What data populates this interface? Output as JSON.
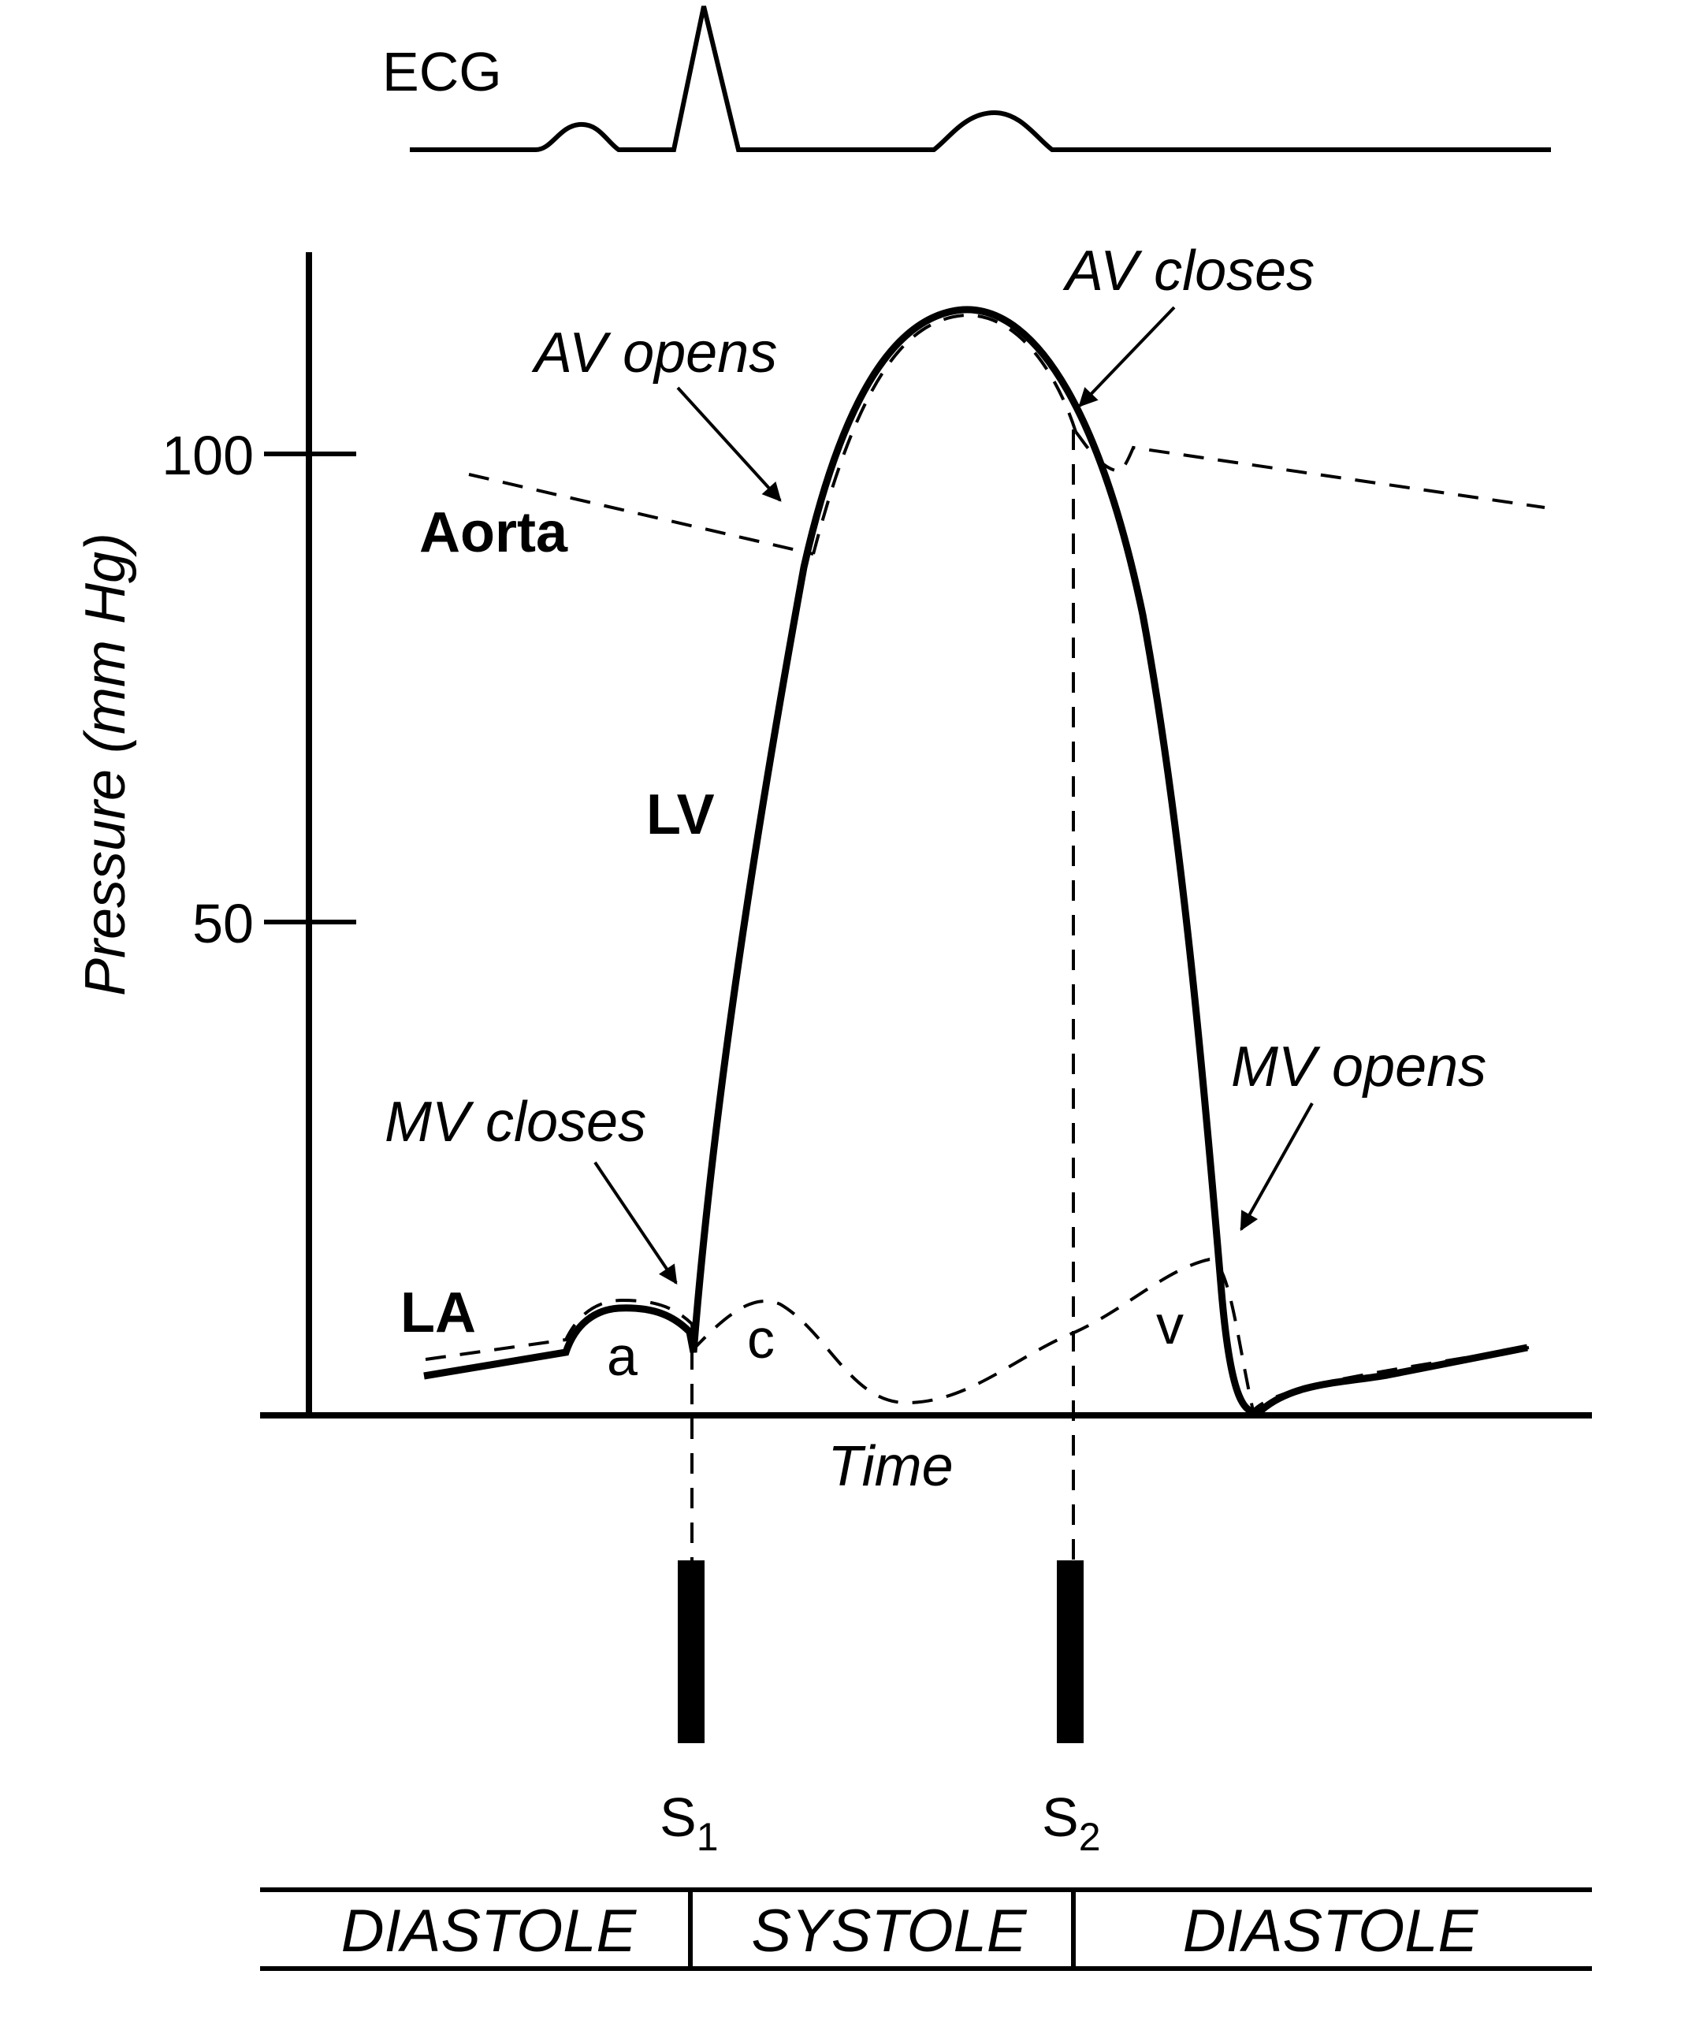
{
  "ecg_label": "ECG",
  "y_axis_title": "Pressure (mm Hg)",
  "y_ticks": [
    "100",
    "50"
  ],
  "x_axis_title": "Time",
  "curve_labels": {
    "aorta": "Aorta",
    "lv": "LV",
    "la": "LA"
  },
  "wave_labels": {
    "a": "a",
    "c": "c",
    "v": "v"
  },
  "events": {
    "av_opens": "AV opens",
    "av_closes": "AV closes",
    "mv_closes": "MV closes",
    "mv_opens": "MV opens"
  },
  "heart_sounds": {
    "s1_letter": "S",
    "s1_sub": "1",
    "s2_letter": "S",
    "s2_sub": "2"
  },
  "phases": [
    "DIASTOLE",
    "SYSTOLE",
    "DIASTOLE"
  ]
}
